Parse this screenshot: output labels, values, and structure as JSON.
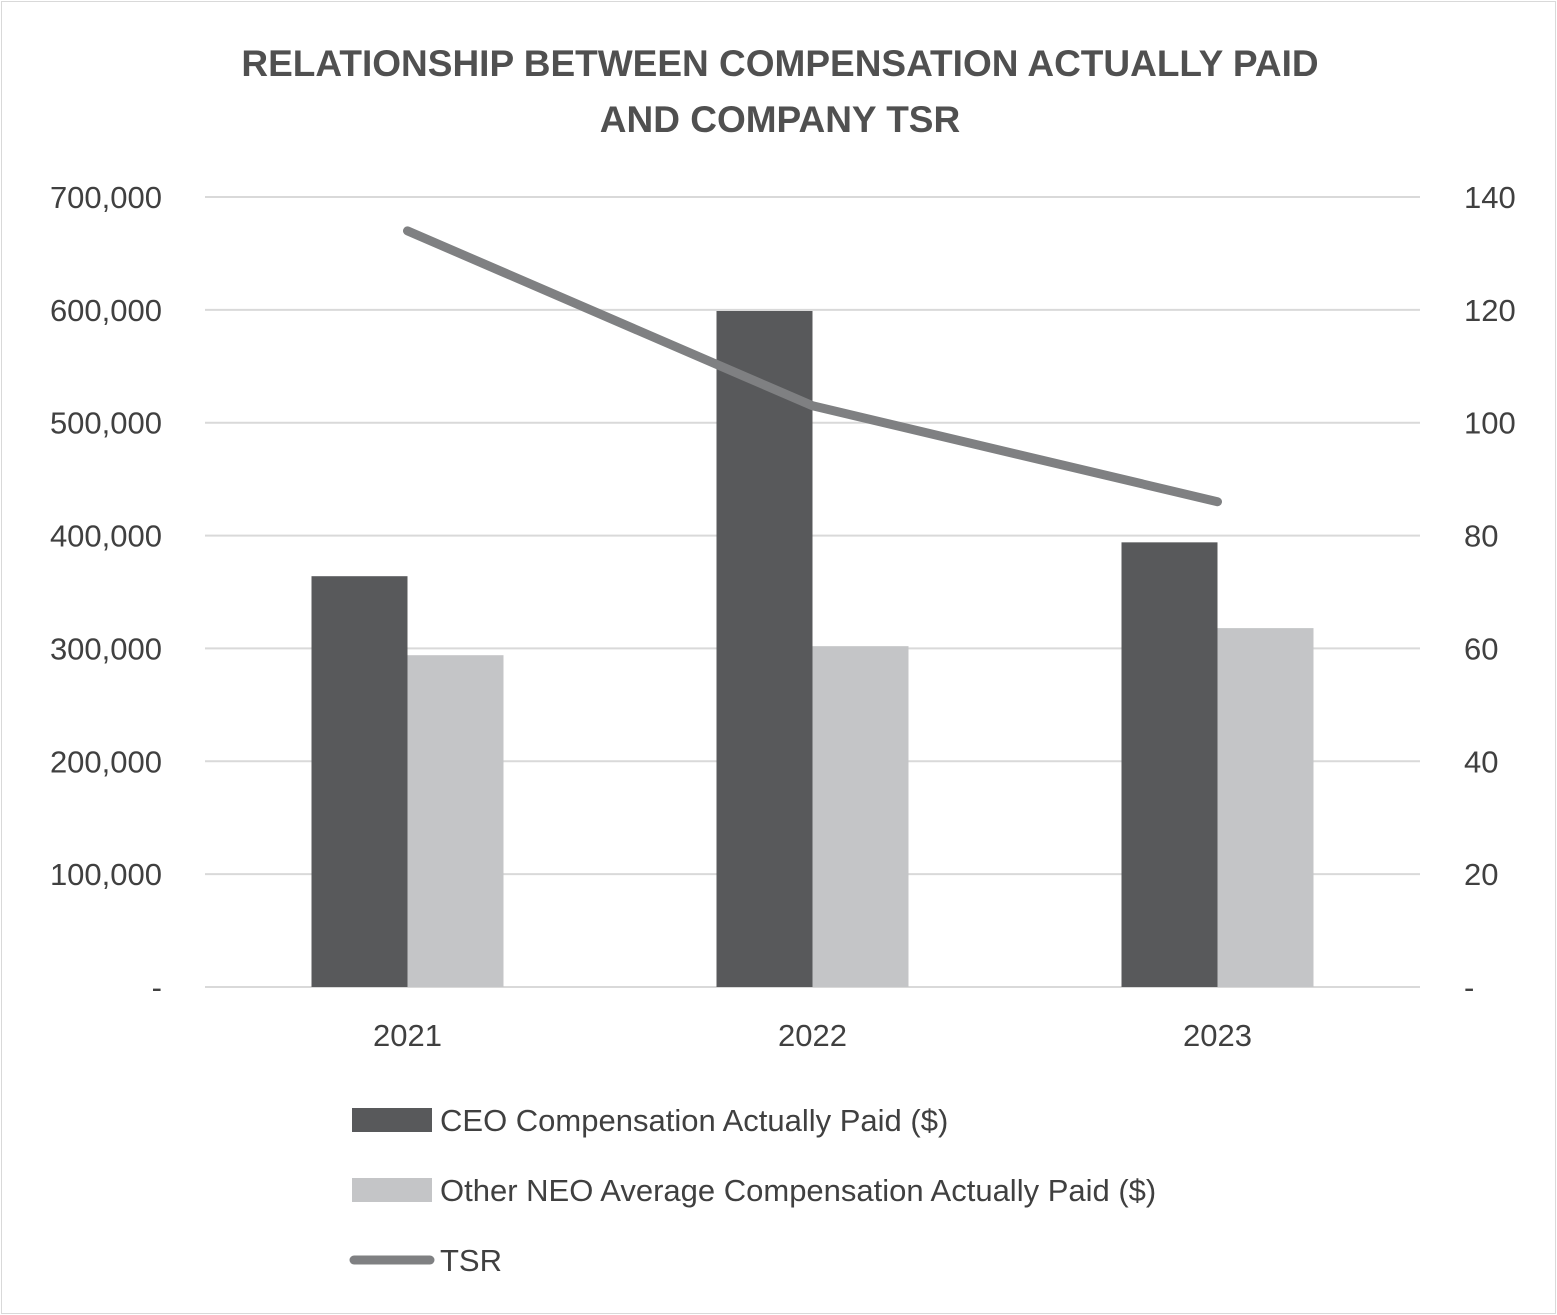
{
  "chart_data": {
    "type": "bar",
    "title_lines": [
      "RELATIONSHIP BETWEEN COMPENSATION ACTUALLY PAID",
      "AND COMPANY TSR"
    ],
    "categories": [
      "2021",
      "2022",
      "2023"
    ],
    "series": [
      {
        "name": "CEO Compensation Actually Paid ($)",
        "type": "bar",
        "axis": "left",
        "color": "#58595b",
        "values": [
          364000,
          599000,
          394000
        ]
      },
      {
        "name": "Other NEO Average Compensation Actually Paid ($)",
        "type": "bar",
        "axis": "left",
        "color": "#c4c5c7",
        "values": [
          294000,
          302000,
          318000
        ]
      },
      {
        "name": "TSR",
        "type": "line",
        "axis": "right",
        "color": "#7f8082",
        "values": [
          134,
          103,
          86
        ]
      }
    ],
    "y_left": {
      "ylim": [
        0,
        700000
      ],
      "ticks": [
        0,
        100000,
        200000,
        300000,
        400000,
        500000,
        600000,
        700000
      ],
      "tick_labels": [
        "-",
        "100,000",
        "200,000",
        "300,000",
        "400,000",
        "500,000",
        "600,000",
        "700,000"
      ]
    },
    "y_right": {
      "ylim": [
        0,
        140
      ],
      "ticks": [
        0,
        20,
        40,
        60,
        80,
        100,
        120,
        140
      ],
      "tick_labels": [
        "-",
        "20",
        "40",
        "60",
        "80",
        "100",
        "120",
        "140"
      ]
    },
    "grid": true,
    "legend_position": "bottom"
  }
}
